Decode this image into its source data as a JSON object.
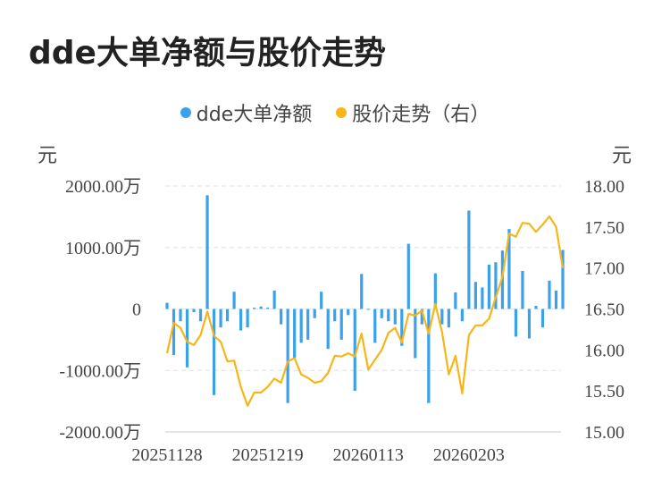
{
  "title": "dde大单净额与股价走势",
  "legend": {
    "series1": "dde大单净额",
    "series2": "股价走势（右）"
  },
  "units": {
    "left": "元",
    "right": "元"
  },
  "colors": {
    "bar": "#3aa1ea",
    "line": "#f6b619",
    "grid": "#e6e6e6"
  },
  "chart_data": {
    "type": "bar",
    "left_axis": {
      "ticks": [
        "2000.00万",
        "1000.00万",
        "0",
        "-1000.00万",
        "-2000.00万"
      ],
      "tick_values": [
        2000,
        1000,
        0,
        -1000,
        -2000
      ],
      "ylim": [
        -2000,
        2000
      ]
    },
    "right_axis": {
      "ticks": [
        "18.00",
        "17.50",
        "17.00",
        "16.50",
        "16.00",
        "15.50",
        "15.00"
      ],
      "tick_values": [
        18,
        17.5,
        17,
        16.5,
        16,
        15.5,
        15
      ],
      "ylim": [
        15,
        18
      ]
    },
    "x_tick_labels": [
      "20251128",
      "20251219",
      "20260113",
      "20260203"
    ],
    "x_tick_indices": [
      0,
      15,
      30,
      45
    ],
    "grid": true,
    "legend_position": "top",
    "series": [
      {
        "name": "dde大单净额",
        "type": "bar",
        "axis": "left",
        "values": [
          100,
          -750,
          -200,
          -950,
          -50,
          -200,
          1850,
          -1400,
          -300,
          -200,
          280,
          -350,
          -300,
          20,
          40,
          20,
          300,
          -250,
          -1530,
          -800,
          -550,
          -500,
          -150,
          280,
          -650,
          -200,
          -500,
          -100,
          -1330,
          570,
          0,
          -550,
          -150,
          -200,
          -250,
          -600,
          1060,
          -800,
          -250,
          -1530,
          580,
          -250,
          -300,
          270,
          -200,
          1600,
          440,
          350,
          720,
          760,
          950,
          1300,
          -450,
          620,
          -480,
          50,
          -300,
          460,
          300,
          960
        ]
      },
      {
        "name": "股价走势（右）",
        "type": "line",
        "axis": "right",
        "values": [
          15.96,
          16.33,
          16.27,
          16.1,
          16.06,
          16.18,
          16.47,
          16.17,
          16.1,
          15.86,
          15.87,
          15.55,
          15.32,
          15.48,
          15.48,
          15.55,
          15.65,
          15.6,
          15.86,
          15.9,
          15.7,
          15.66,
          15.6,
          15.62,
          15.72,
          15.93,
          15.92,
          15.96,
          15.92,
          16.2,
          15.76,
          15.88,
          16.0,
          16.21,
          16.27,
          16.09,
          16.44,
          16.42,
          16.48,
          16.2,
          16.56,
          16.22,
          15.7,
          15.93,
          15.47,
          16.18,
          16.3,
          16.3,
          16.38,
          16.64,
          16.89,
          17.42,
          17.38,
          17.55,
          17.54,
          17.44,
          17.53,
          17.63,
          17.5,
          17.0
        ]
      }
    ]
  }
}
